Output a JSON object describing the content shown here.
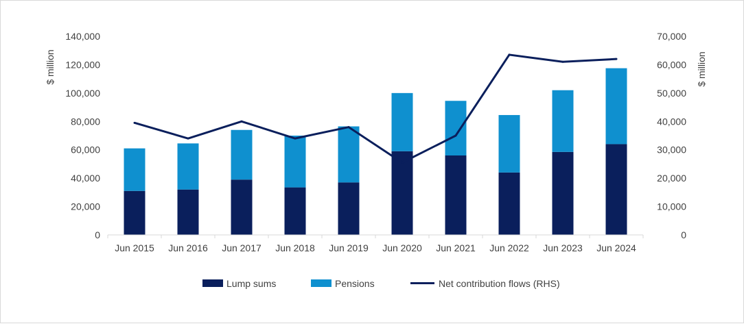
{
  "chart_data": {
    "type": "bar",
    "stacked": true,
    "categories": [
      "Jun 2015",
      "Jun 2016",
      "Jun 2017",
      "Jun 2018",
      "Jun 2019",
      "Jun 2020",
      "Jun 2021",
      "Jun 2022",
      "Jun 2023",
      "Jun 2024"
    ],
    "series": [
      {
        "name": "Lump sums",
        "type": "bar",
        "axis": "left",
        "color": "#0a1f5c",
        "values": [
          31000,
          32000,
          39000,
          33500,
          37000,
          59000,
          56000,
          44000,
          58500,
          64000
        ]
      },
      {
        "name": "Pensions",
        "type": "bar",
        "axis": "left",
        "color": "#0f90cf",
        "values": [
          30000,
          32500,
          35000,
          36500,
          39500,
          41000,
          38500,
          40500,
          43500,
          53500
        ]
      },
      {
        "name": "Net contribution flows (RHS)",
        "type": "line",
        "axis": "right",
        "color": "#0a1f5c",
        "values": [
          39500,
          34000,
          40000,
          34000,
          38000,
          25500,
          35000,
          63500,
          61000,
          62000
        ]
      }
    ],
    "y_left": {
      "label": "$ million",
      "ylim": [
        0,
        140000
      ],
      "ticks": [
        "0",
        "20,000",
        "40,000",
        "60,000",
        "80,000",
        "100,000",
        "120,000",
        "140,000"
      ]
    },
    "y_right": {
      "label": "$ million",
      "ylim": [
        0,
        70000
      ],
      "ticks": [
        "0",
        "10,000",
        "20,000",
        "30,000",
        "40,000",
        "50,000",
        "60,000",
        "70,000"
      ]
    },
    "legend_position": "bottom",
    "grid": false
  }
}
